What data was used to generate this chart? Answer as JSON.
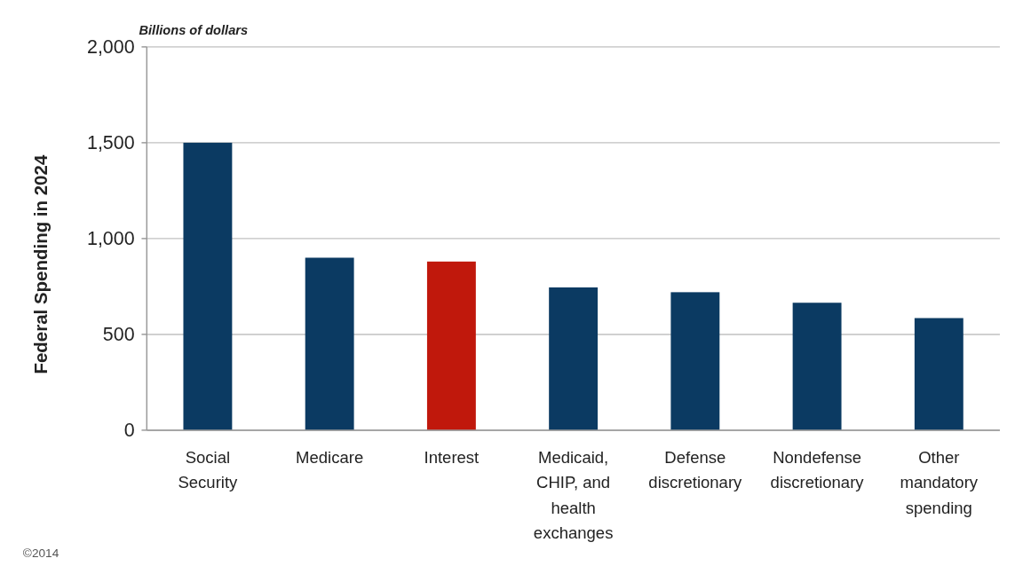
{
  "chart_data": {
    "type": "bar",
    "ylabel": "Federal Spending in 2024",
    "categories": [
      "Social Security",
      "Medicare",
      "Interest",
      "Medicaid, CHIP, and health exchanges",
      "Defense discretionary",
      "Nondefense discretionary",
      "Other mandatory spending"
    ],
    "values": [
      1500,
      900,
      880,
      745,
      720,
      665,
      585
    ],
    "colors": [
      "#0b3a62",
      "#0b3a62",
      "#c0180c",
      "#0b3a62",
      "#0b3a62",
      "#0b3a62",
      "#0b3a62"
    ],
    "ylim": [
      0,
      2000
    ],
    "yticks": [
      0,
      {
        "value": 500,
        "label": "500"
      },
      {
        "value": 1000,
        "label": "1,000"
      },
      {
        "value": 1500,
        "label": "1,500"
      },
      {
        "value": 2000,
        "label": "2,000"
      }
    ],
    "grid": "y",
    "annotations": [
      "Billions of dollars",
      "©2014"
    ]
  }
}
